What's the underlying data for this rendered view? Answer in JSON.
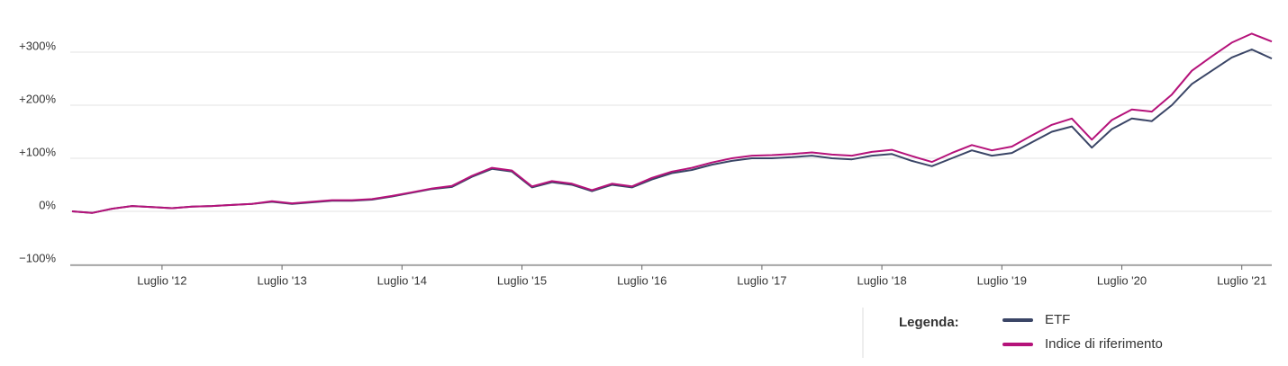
{
  "chart_data": {
    "type": "line",
    "x": [
      "2011-10",
      "2011-12",
      "2012-02",
      "2012-04",
      "2012-06",
      "2012-08",
      "2012-10",
      "2012-12",
      "2013-02",
      "2013-04",
      "2013-06",
      "2013-08",
      "2013-10",
      "2013-12",
      "2014-02",
      "2014-04",
      "2014-06",
      "2014-08",
      "2014-10",
      "2014-12",
      "2015-02",
      "2015-04",
      "2015-06",
      "2015-08",
      "2015-10",
      "2015-12",
      "2016-02",
      "2016-04",
      "2016-06",
      "2016-08",
      "2016-10",
      "2016-12",
      "2017-02",
      "2017-04",
      "2017-06",
      "2017-08",
      "2017-10",
      "2017-12",
      "2018-02",
      "2018-04",
      "2018-06",
      "2018-08",
      "2018-10",
      "2018-12",
      "2019-02",
      "2019-04",
      "2019-06",
      "2019-08",
      "2019-10",
      "2019-12",
      "2020-02",
      "2020-04",
      "2020-06",
      "2020-08",
      "2020-10",
      "2020-12",
      "2021-02",
      "2021-04",
      "2021-06",
      "2021-08",
      "2021-10"
    ],
    "series": [
      {
        "name": "ETF",
        "color": "#3a4566",
        "values": [
          0,
          -3,
          5,
          10,
          8,
          6,
          9,
          10,
          12,
          14,
          18,
          14,
          17,
          20,
          20,
          22,
          28,
          35,
          42,
          46,
          65,
          80,
          75,
          45,
          55,
          50,
          38,
          50,
          45,
          60,
          72,
          78,
          88,
          95,
          100,
          100,
          102,
          105,
          100,
          98,
          105,
          108,
          95,
          85,
          100,
          115,
          105,
          110,
          130,
          150,
          160,
          120,
          155,
          175,
          170,
          200,
          240,
          265,
          290,
          305,
          288
        ]
      },
      {
        "name": "Indice di riferimento",
        "color": "#b5127a",
        "values": [
          0,
          -3,
          5,
          10,
          8,
          6,
          9,
          10,
          12,
          14,
          19,
          15,
          18,
          21,
          21,
          23,
          29,
          36,
          43,
          48,
          67,
          82,
          77,
          47,
          57,
          52,
          40,
          52,
          47,
          63,
          75,
          82,
          92,
          100,
          105,
          106,
          108,
          111,
          107,
          105,
          112,
          116,
          104,
          93,
          110,
          125,
          115,
          122,
          143,
          163,
          175,
          135,
          172,
          192,
          188,
          220,
          265,
          292,
          318,
          335,
          320
        ]
      }
    ],
    "xlim": [
      "2011-10",
      "2021-10"
    ],
    "xticks": [
      {
        "value": "2012-07",
        "label": "Luglio '12"
      },
      {
        "value": "2013-07",
        "label": "Luglio '13"
      },
      {
        "value": "2014-07",
        "label": "Luglio '14"
      },
      {
        "value": "2015-07",
        "label": "Luglio '15"
      },
      {
        "value": "2016-07",
        "label": "Luglio '16"
      },
      {
        "value": "2017-07",
        "label": "Luglio '17"
      },
      {
        "value": "2018-07",
        "label": "Luglio '18"
      },
      {
        "value": "2019-07",
        "label": "Luglio '19"
      },
      {
        "value": "2020-07",
        "label": "Luglio '20"
      },
      {
        "value": "2021-07",
        "label": "Luglio '21"
      }
    ],
    "ylim": [
      -100,
      400
    ],
    "yticks": [
      {
        "value": -100,
        "label": "−100%"
      },
      {
        "value": 0,
        "label": "0%"
      },
      {
        "value": 100,
        "label": "+100%"
      },
      {
        "value": 200,
        "label": "+200%"
      },
      {
        "value": 300,
        "label": "+300%"
      }
    ],
    "grid": true,
    "legend_title": "Legenda:"
  }
}
